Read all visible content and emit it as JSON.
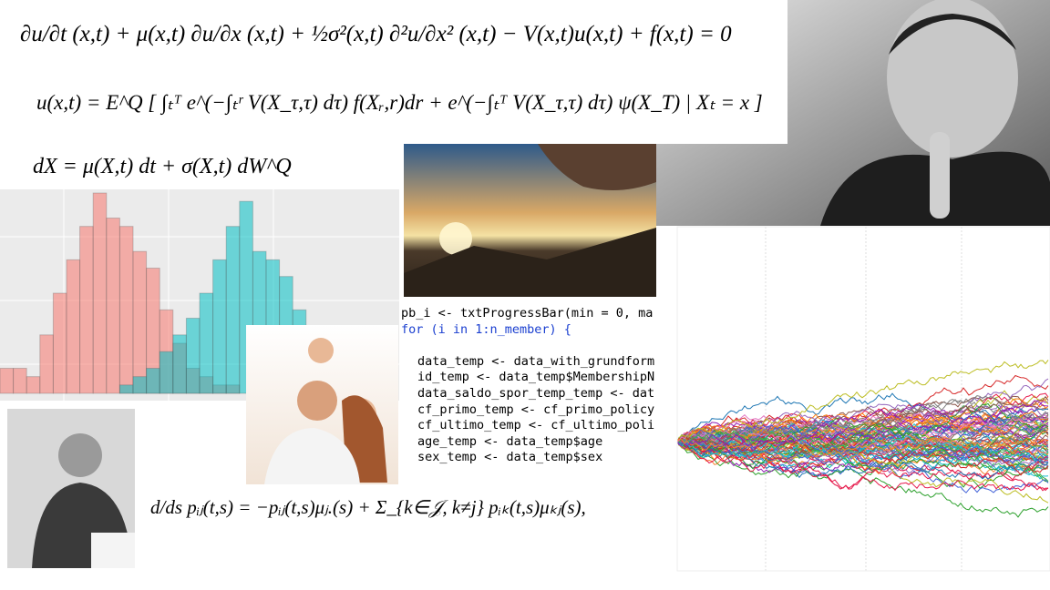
{
  "equations": {
    "pde": "∂u/∂t (x,t) + μ(x,t) ∂u/∂x (x,t) + ½σ²(x,t) ∂²u/∂x² (x,t) − V(x,t)u(x,t) + f(x,t) = 0",
    "feynman_kac": "u(x,t) = E^Q [ ∫ₜᵀ e^(−∫ₜʳ V(X_τ,τ) dτ) f(Xᵣ,r)dr + e^(−∫ₜᵀ V(X_τ,τ) dτ) ψ(X_T) | Xₜ = x ]",
    "sde": "dX = μ(X,t) dt + σ(X,t) dW^Q",
    "thiele": "d/ds pᵢⱼ(t,s) = −pᵢⱼ(t,s)μⱼ.(s) + Σ_{k∈𝒥, k≠j} pᵢₖ(t,s)μₖⱼ(s),"
  },
  "code": {
    "lines": [
      "pb_i <- txtProgressBar(min = 0, ma",
      "for (i in 1:n_member) {",
      "data_temp <- data_with_grundform",
      "id_temp <- data_temp$MembershipN",
      "data_saldo_spor_temp_temp <- dat",
      "cf_primo_temp <- cf_primo_policy",
      "cf_ultimo_temp <- cf_ultimo_poli",
      "age_temp <- data_temp$age",
      "sex_temp <- data_temp$sex"
    ]
  },
  "histogram": {
    "ylim": [
      0,
      24
    ],
    "series": [
      {
        "color": "#f8766d",
        "values": [
          3,
          3,
          2,
          7,
          12,
          16,
          20,
          24,
          21,
          20,
          17,
          15,
          10,
          6,
          3,
          2,
          1,
          1,
          0,
          0,
          0,
          0,
          0,
          0,
          0,
          0,
          0,
          0,
          0,
          0
        ]
      },
      {
        "color": "#00bfc4",
        "values": [
          0,
          0,
          0,
          0,
          0,
          0,
          0,
          0,
          0,
          1,
          2,
          3,
          5,
          7,
          9,
          12,
          16,
          20,
          23,
          17,
          16,
          14,
          10,
          8,
          4,
          2,
          1,
          0,
          0,
          0
        ]
      }
    ]
  }
}
